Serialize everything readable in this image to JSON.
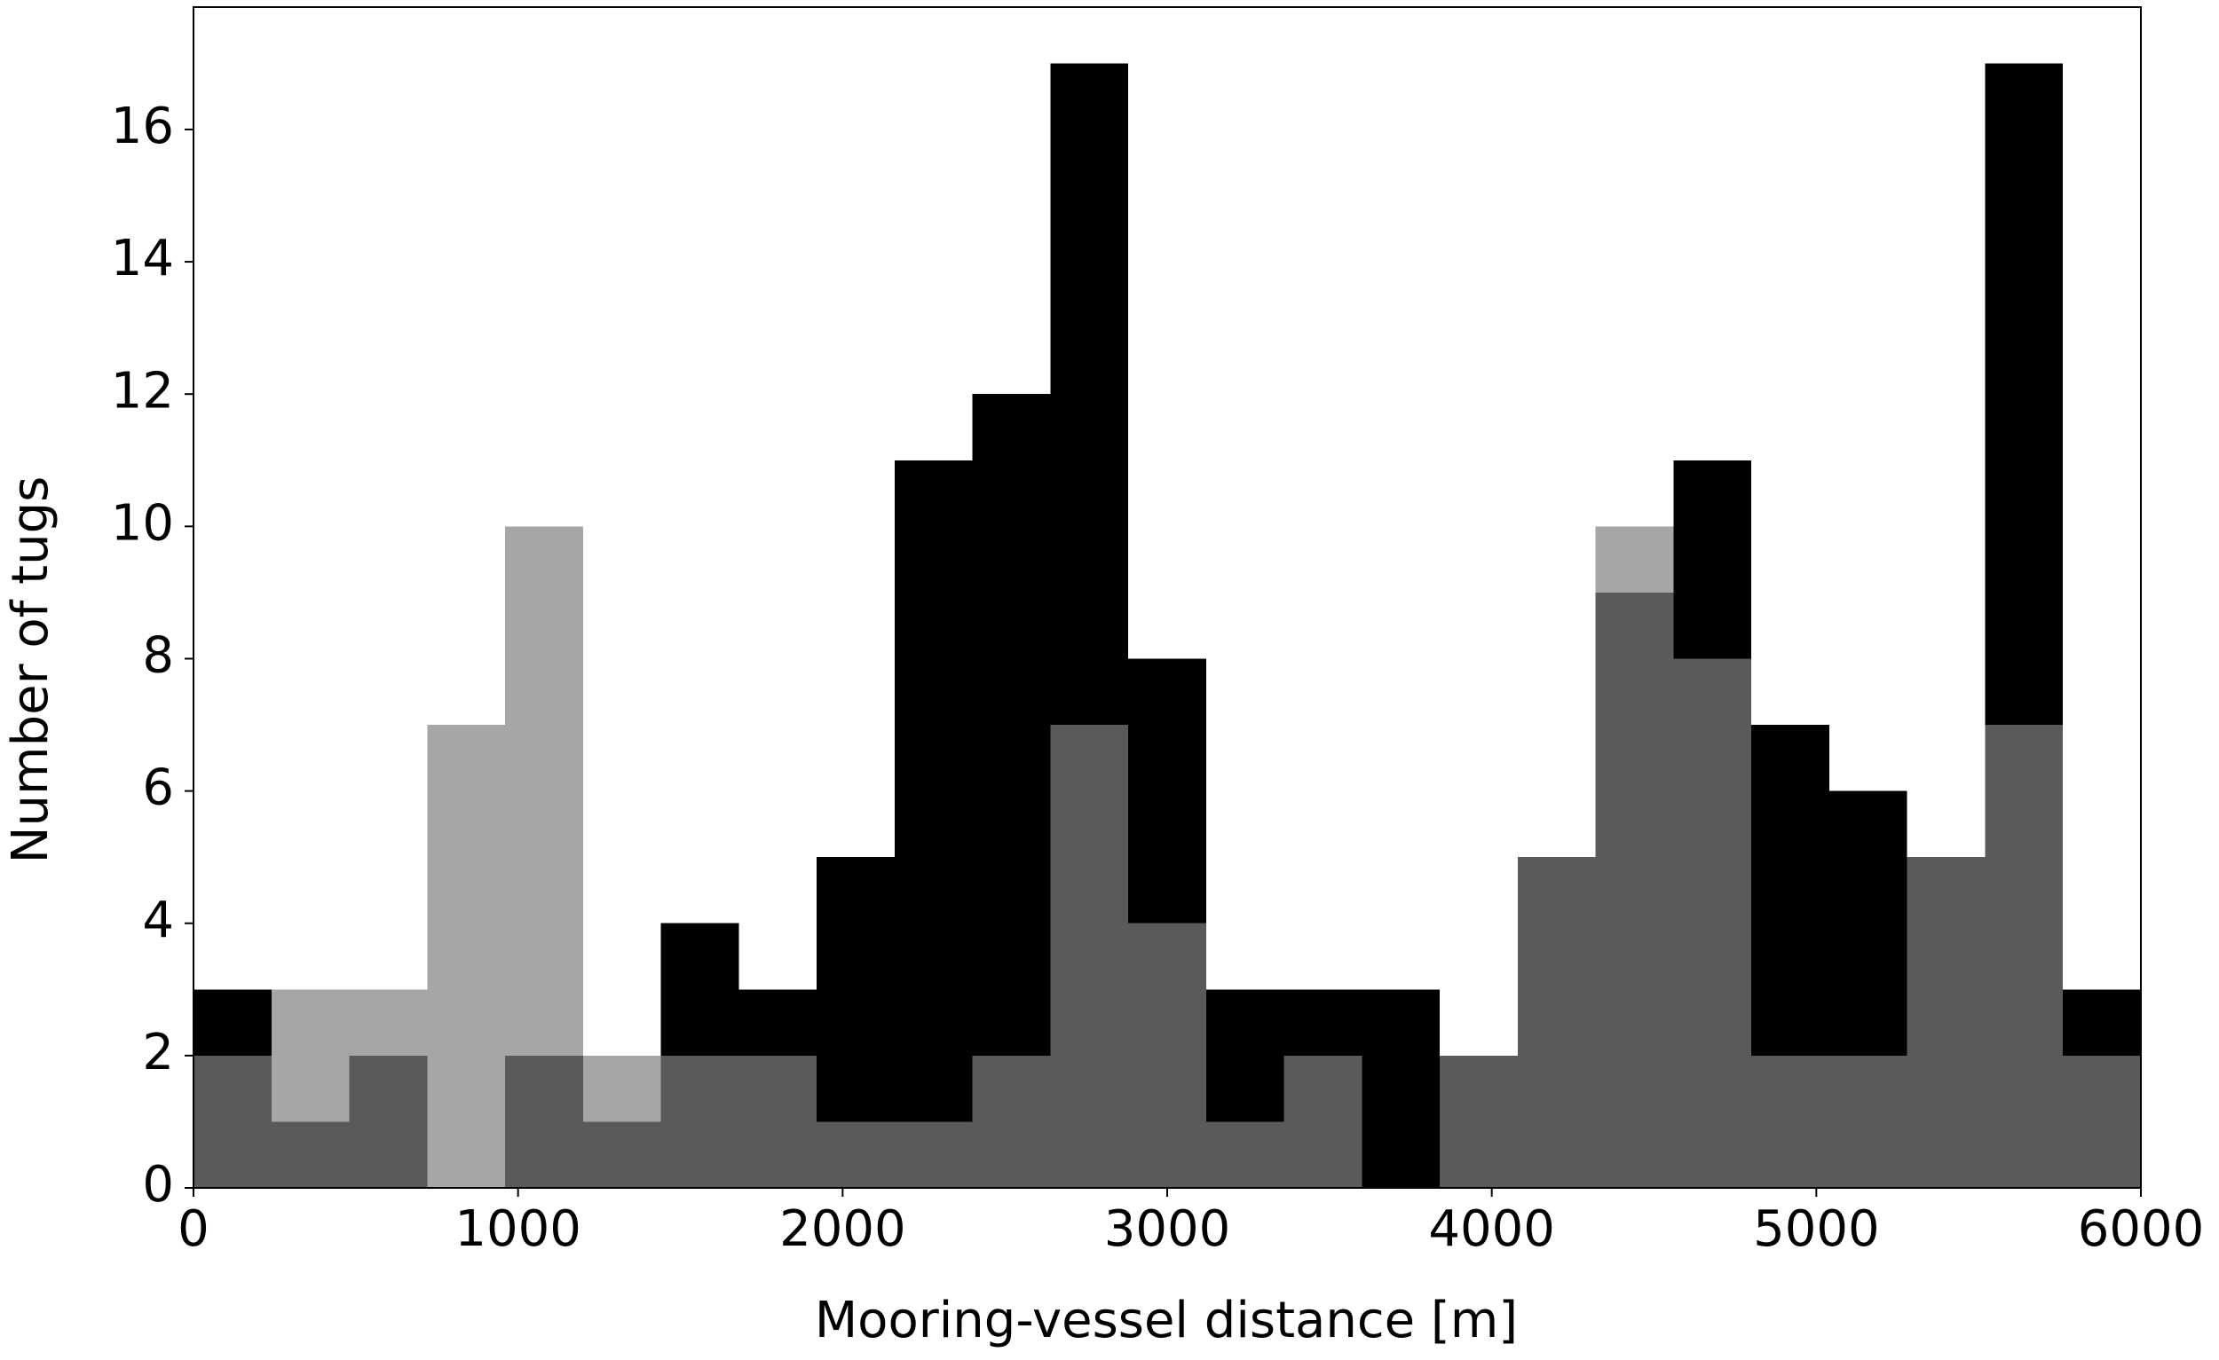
{
  "chart_data": {
    "type": "histogram",
    "xlabel": "Mooring-vessel distance [m]",
    "ylabel": "Number of tugs",
    "bins": [
      0,
      240,
      480,
      720,
      960,
      1200,
      1440,
      1680,
      1920,
      2160,
      2400,
      2640,
      2880,
      3120,
      3360,
      3600,
      3840,
      4080,
      4320,
      4560,
      4800,
      5040,
      5280,
      5520,
      5760,
      6000
    ],
    "series": [
      {
        "color": "#000000",
        "opacity": 1,
        "values": [
          3,
          1,
          2,
          0,
          2,
          1,
          4,
          3,
          5,
          11,
          12,
          17,
          8,
          3,
          3,
          3,
          2,
          5,
          9,
          11,
          7,
          6,
          5,
          17,
          3
        ]
      },
      {
        "color": "#808080",
        "opacity": 0.7,
        "values": [
          2,
          3,
          3,
          7,
          10,
          2,
          2,
          2,
          1,
          1,
          2,
          7,
          4,
          1,
          2,
          0,
          2,
          5,
          10,
          8,
          2,
          2,
          5,
          7,
          2
        ]
      }
    ],
    "xlim": [
      0,
      6000
    ],
    "xticks": [
      0,
      1000,
      2000,
      3000,
      4000,
      5000,
      6000
    ],
    "ylim": [
      0,
      17.85
    ],
    "yticks": [
      0,
      2,
      4,
      6,
      8,
      10,
      12,
      14,
      16
    ]
  }
}
